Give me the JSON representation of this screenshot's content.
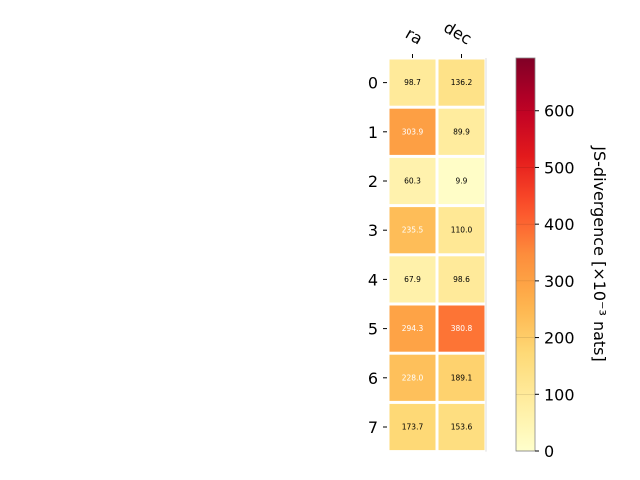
{
  "chart_data": {
    "type": "heatmap",
    "title": "",
    "columns": [
      "ra",
      "dec"
    ],
    "rows": [
      "0",
      "1",
      "2",
      "3",
      "4",
      "5",
      "6",
      "7"
    ],
    "values": [
      [
        98.7,
        136.2
      ],
      [
        303.9,
        89.9
      ],
      [
        60.3,
        9.9
      ],
      [
        235.5,
        110.0
      ],
      [
        67.9,
        98.6
      ],
      [
        294.3,
        380.8
      ],
      [
        228.0,
        189.1
      ],
      [
        173.7,
        153.6
      ]
    ],
    "cell_labels": [
      [
        "98.7",
        "136.2"
      ],
      [
        "303.9",
        "89.9"
      ],
      [
        "60.3",
        "9.9"
      ],
      [
        "235.5",
        "110.0"
      ],
      [
        "67.9",
        "98.6"
      ],
      [
        "294.3",
        "380.8"
      ],
      [
        "228.0",
        "189.1"
      ],
      [
        "173.7",
        "153.6"
      ]
    ],
    "colormap": "YlOrRd",
    "colorbar": {
      "label": "JS-divergence [×10⁻³ nats]",
      "range": [
        0,
        693
      ],
      "ticks": [
        0,
        100,
        200,
        300,
        400,
        500,
        600
      ],
      "tick_labels": [
        "0",
        "100",
        "200",
        "300",
        "400",
        "500",
        "600"
      ]
    }
  }
}
